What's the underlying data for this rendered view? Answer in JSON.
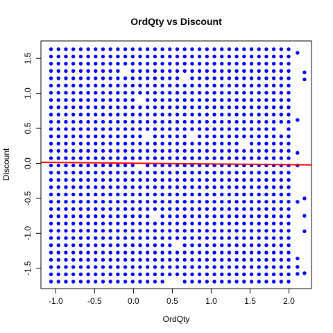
{
  "chart_data": {
    "type": "scatter",
    "title": "OrdQty vs Discount",
    "xlabel": "OrdQty",
    "ylabel": "Discount",
    "xlim": [
      -1.19,
      2.29
    ],
    "ylim": [
      -1.79,
      1.75
    ],
    "xticks": [
      -1.0,
      -0.5,
      0.0,
      0.5,
      1.0,
      1.5,
      2.0
    ],
    "xtick_labels": [
      "-1.0",
      "-0.5",
      "0.0",
      "0.5",
      "1.0",
      "1.5",
      "2.0"
    ],
    "yticks": [
      -1.5,
      -1.0,
      -0.5,
      0.0,
      0.5,
      1.0,
      1.5
    ],
    "ytick_labels": [
      "-1.5",
      "-1.0",
      "-0.5",
      "0.0",
      "0.5",
      "1.0",
      "1.5"
    ],
    "grid": false,
    "point_color": "#0000ff",
    "points": {
      "layout": "grid",
      "x_start": -1.06,
      "x_step": 0.0955,
      "x_count": 33,
      "y_start": -1.69,
      "y_step": 0.1038,
      "y_count": 33,
      "gaps": [
        [
          -0.11,
          1.28
        ],
        [
          0.08,
          0.87
        ],
        [
          0.17,
          0.36
        ],
        [
          0.74,
          0.36
        ],
        [
          0.65,
          1.25
        ],
        [
          -0.59,
          1.57
        ],
        [
          0.6,
          -1.15
        ],
        [
          1.08,
          0.77
        ],
        [
          0.45,
          -1.66
        ],
        [
          0.55,
          -1.66
        ],
        [
          0.07,
          -0.02
        ],
        [
          1.45,
          0.26
        ],
        [
          1.9,
          0.48
        ],
        [
          0.3,
          -0.79
        ],
        [
          -0.4,
          0.65
        ]
      ],
      "extra": [
        [
          2.11,
          1.58
        ],
        [
          2.2,
          1.3
        ],
        [
          2.2,
          1.2
        ],
        [
          2.11,
          0.62
        ],
        [
          2.11,
          0.15
        ],
        [
          2.11,
          -0.03
        ],
        [
          2.2,
          -0.5
        ],
        [
          2.11,
          -0.55
        ],
        [
          2.2,
          -0.75
        ],
        [
          2.2,
          -0.97
        ],
        [
          2.11,
          -1.36
        ],
        [
          2.11,
          -1.48
        ],
        [
          2.11,
          -1.58
        ],
        [
          2.2,
          -1.57
        ]
      ]
    },
    "regression_line": {
      "x": [
        -1.19,
        2.29
      ],
      "y": [
        0.015,
        -0.022
      ],
      "color": "#ff0000"
    }
  }
}
